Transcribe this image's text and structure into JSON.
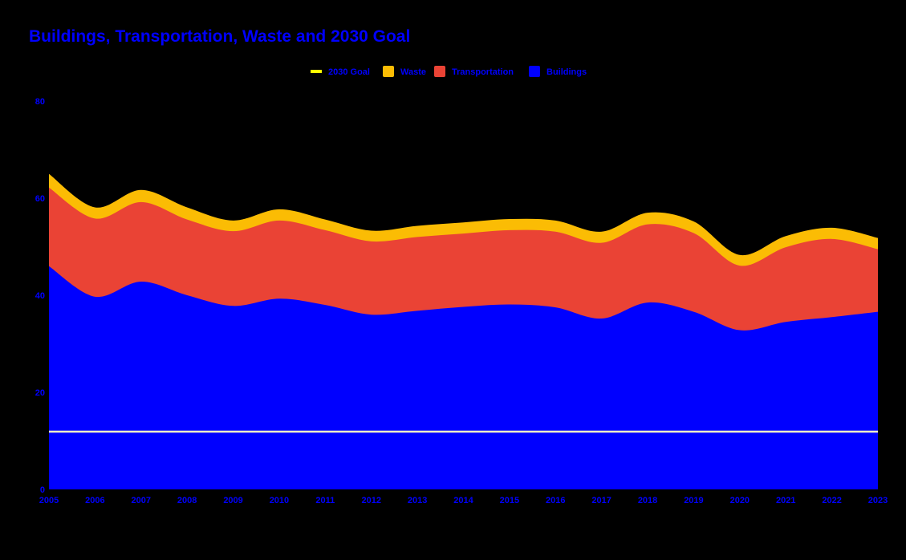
{
  "chart_data": {
    "type": "area",
    "stacked": true,
    "title": "Buildings, Transportation, Waste and 2030 Goal",
    "x": [
      2005,
      2006,
      2007,
      2008,
      2009,
      2010,
      2011,
      2012,
      2013,
      2014,
      2015,
      2016,
      2017,
      2018,
      2019,
      2020,
      2021,
      2022,
      2023
    ],
    "xtick_labels": [
      "2005",
      "2006",
      "2007",
      "2008",
      "2009",
      "2010",
      "2011",
      "2012",
      "2013",
      "2014",
      "2015",
      "2016",
      "2017",
      "2018",
      "2019",
      "2020",
      "2021",
      "2022",
      "2023"
    ],
    "ylim": [
      0,
      80
    ],
    "yticks": [
      0,
      20,
      40,
      60,
      80
    ],
    "ytick_labels": [
      "0",
      "20",
      "40",
      "60",
      "80"
    ],
    "legend_position": "top-center",
    "series": [
      {
        "name": "Buildings",
        "color": "#0000ff",
        "values": [
          46,
          39.7,
          42.8,
          40,
          37.8,
          39.3,
          38,
          36,
          36.8,
          37.6,
          38.1,
          37.5,
          35.2,
          38.5,
          36.6,
          32.8,
          34.5,
          35.5,
          36.6
        ]
      },
      {
        "name": "Transportation",
        "color": "#ea4335",
        "values": [
          16.2,
          16.1,
          16.4,
          15.6,
          15.4,
          16.1,
          15.4,
          15.1,
          15.2,
          15.1,
          15.3,
          15.6,
          15.6,
          16.1,
          16.2,
          13.3,
          15.4,
          16.1,
          12.9
        ]
      },
      {
        "name": "Waste",
        "color": "#fbbc04",
        "values": [
          2.8,
          2.3,
          2.5,
          2.5,
          2.2,
          2.3,
          2.2,
          2.2,
          2.3,
          2.3,
          2.3,
          2.3,
          2.3,
          2.4,
          2.4,
          2.2,
          2.3,
          2.3,
          2.3
        ]
      },
      {
        "name": "2030 Goal",
        "color": "#ffff00",
        "line_only": true,
        "values": [
          11.9,
          11.9,
          11.9,
          11.9,
          11.9,
          11.9,
          11.9,
          11.9,
          11.9,
          11.9,
          11.9,
          11.9,
          11.9,
          11.9,
          11.9,
          11.9,
          11.9,
          11.9,
          11.9
        ]
      }
    ],
    "legend_order": [
      "2030 Goal",
      "Waste",
      "Transportation",
      "Buildings"
    ]
  }
}
